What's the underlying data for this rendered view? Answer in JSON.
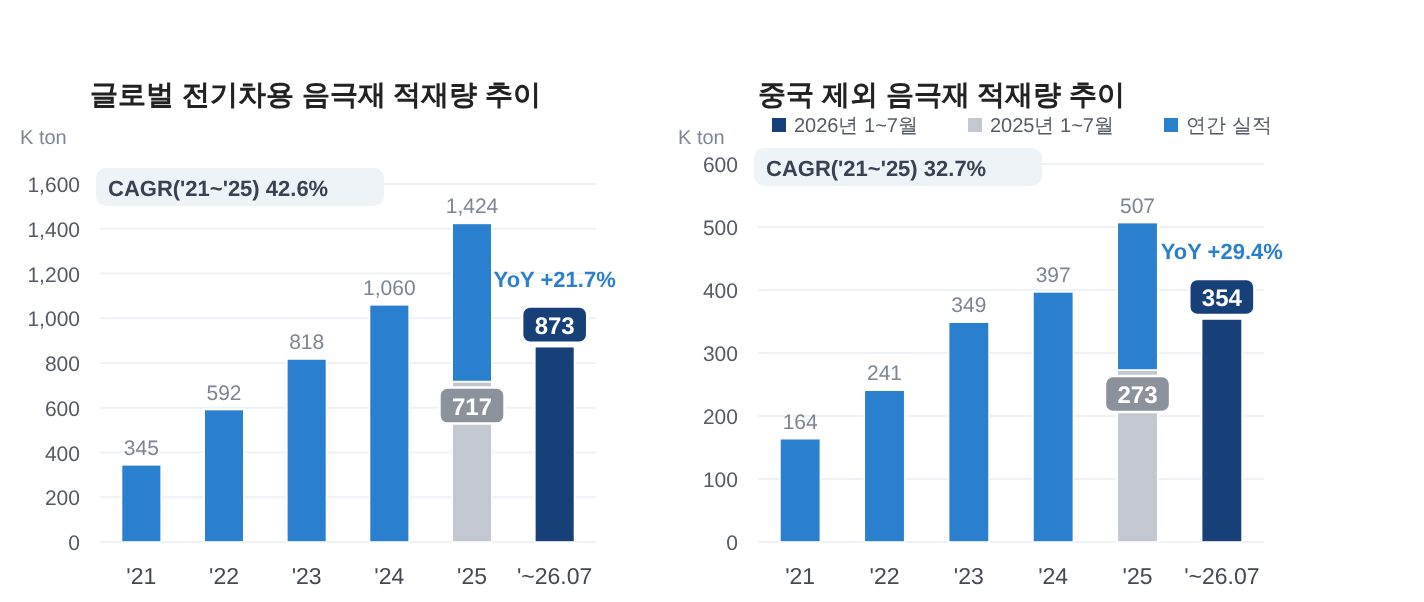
{
  "chart_data": [
    {
      "type": "bar",
      "stacked": true,
      "title": "글로벌 전기차용 음극재 적재량 추이",
      "ylabel": "K ton",
      "categories": [
        "'21",
        "'22",
        "'23",
        "'24",
        "'25",
        "'~26.07"
      ],
      "ylim": [
        0,
        1600
      ],
      "yticks": [
        0,
        200,
        400,
        600,
        800,
        {
          "value": 1000,
          "label": "1,000"
        },
        {
          "value": 1200,
          "label": "1,200"
        },
        {
          "value": 1400,
          "label": "1,400"
        },
        {
          "value": 1600,
          "label": "1,600"
        }
      ],
      "grid": "y",
      "legend": false,
      "annotations": [
        "CAGR('21~'25)  42.6%",
        {
          "text": "YoY  +21.7%",
          "x": "'~26.07",
          "y": 873
        }
      ],
      "totals": [
        "345",
        "592",
        "818",
        "1,060",
        "1,424",
        null
      ],
      "series": [
        {
          "color": "#c3c8d0",
          "values": [
            null,
            null,
            null,
            null,
            717,
            null
          ],
          "value_labels": [
            null,
            null,
            null,
            null,
            "717",
            null
          ]
        },
        {
          "color": "#2a7fcf",
          "values": [
            345,
            592,
            818,
            1060,
            707,
            null
          ]
        },
        {
          "color": "#173f78",
          "values": [
            null,
            null,
            null,
            null,
            null,
            873
          ],
          "value_labels": [
            null,
            null,
            null,
            null,
            null,
            "873"
          ]
        }
      ]
    },
    {
      "type": "bar",
      "stacked": true,
      "title": "중국 제외 음극재 적재량 추이",
      "ylabel": "K ton",
      "categories": [
        "'21",
        "'22",
        "'23",
        "'24",
        "'25",
        "'~26.07"
      ],
      "ylim": [
        0,
        600
      ],
      "yticks": [
        0,
        100,
        200,
        300,
        400,
        500,
        600
      ],
      "grid": "y",
      "legend": "top",
      "annotations": [
        "CAGR('21~'25)  32.7%",
        {
          "text": "YoY  +29.4%",
          "x": "'~26.07",
          "y": 354
        }
      ],
      "totals": [
        "164",
        "241",
        "349",
        "397",
        "507",
        null
      ],
      "series": [
        {
          "name": "2026년 1~7월",
          "color": "#173f78",
          "values": [
            null,
            null,
            null,
            null,
            null,
            354
          ],
          "value_labels": [
            null,
            null,
            null,
            null,
            null,
            "354"
          ]
        },
        {
          "name": "2025년 1~7월",
          "color": "#c3c8d0",
          "values": [
            null,
            null,
            null,
            null,
            273,
            null
          ],
          "value_labels": [
            null,
            null,
            null,
            null,
            "273",
            null
          ]
        },
        {
          "name": "연간 실적",
          "color": "#2a7fcf",
          "values": [
            164,
            241,
            349,
            397,
            234,
            null
          ]
        }
      ]
    }
  ]
}
